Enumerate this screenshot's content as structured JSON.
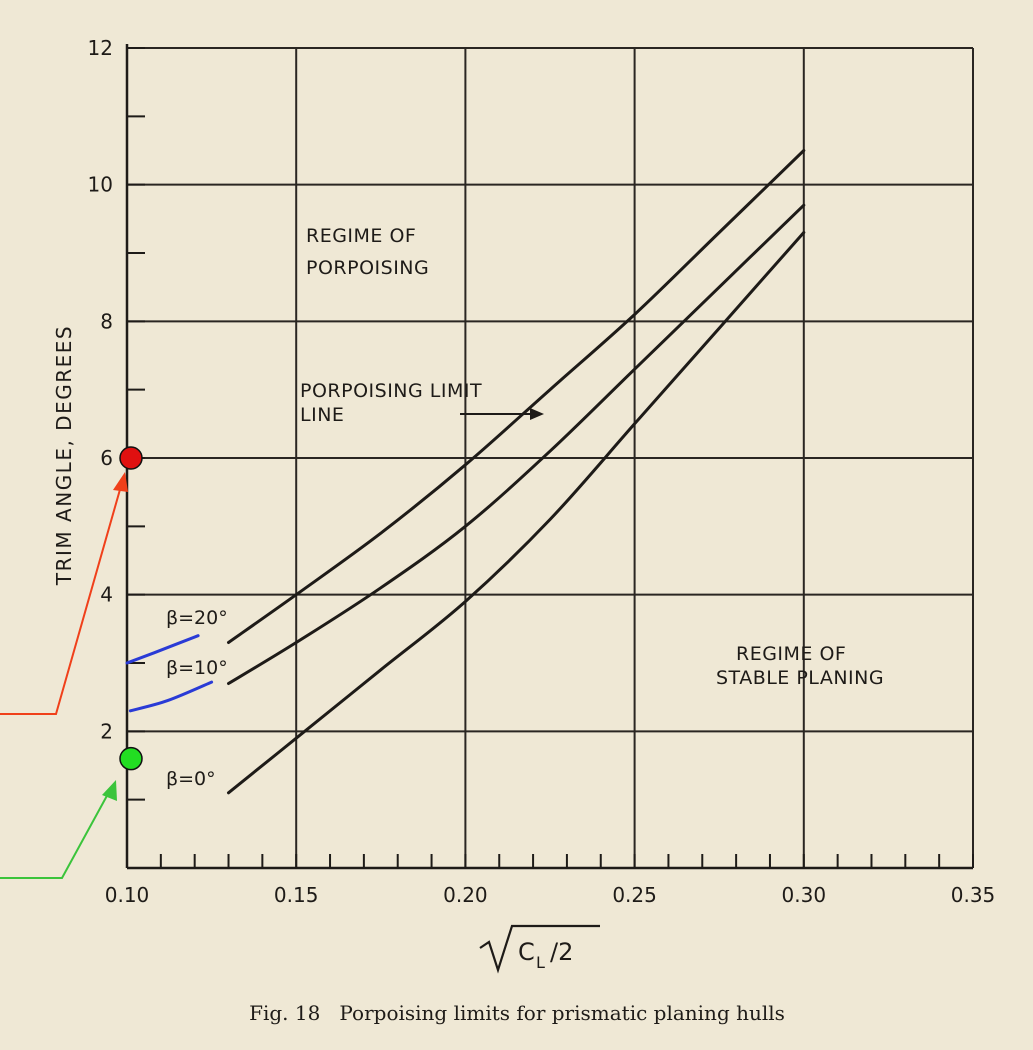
{
  "chart_data": {
    "type": "line",
    "title": "",
    "ylabel": "TRIM ANGLE, DEGREES",
    "xlabel": "√(CL/2)",
    "xlim": [
      0.1,
      0.35
    ],
    "ylim": [
      0,
      12
    ],
    "x_ticks": [
      "0.10",
      "0.15",
      "0.20",
      "0.25",
      "0.30",
      "0.35"
    ],
    "y_ticks": [
      "2",
      "4",
      "6",
      "8",
      "10",
      "12"
    ],
    "grid": true,
    "legend": "none",
    "series": [
      {
        "name": "β=20°",
        "color": "#1e1b18",
        "points": [
          [
            0.13,
            3.3
          ],
          [
            0.15,
            4.0
          ],
          [
            0.175,
            4.9
          ],
          [
            0.2,
            5.9
          ],
          [
            0.225,
            7.0
          ],
          [
            0.25,
            8.1
          ],
          [
            0.275,
            9.3
          ],
          [
            0.3,
            10.5
          ]
        ]
      },
      {
        "name": "β=10°",
        "color": "#1e1b18",
        "points": [
          [
            0.13,
            2.7
          ],
          [
            0.15,
            3.3
          ],
          [
            0.175,
            4.1
          ],
          [
            0.2,
            5.0
          ],
          [
            0.225,
            6.1
          ],
          [
            0.25,
            7.3
          ],
          [
            0.275,
            8.5
          ],
          [
            0.3,
            9.7
          ]
        ]
      },
      {
        "name": "β=0°",
        "color": "#1e1b18",
        "points": [
          [
            0.13,
            1.1
          ],
          [
            0.15,
            1.9
          ],
          [
            0.175,
            2.9
          ],
          [
            0.2,
            3.9
          ],
          [
            0.225,
            5.1
          ],
          [
            0.25,
            6.5
          ],
          [
            0.275,
            7.9
          ],
          [
            0.3,
            9.3
          ]
        ]
      }
    ],
    "blue_extensions": [
      {
        "color": "#2a3bd6",
        "points": [
          [
            0.1,
            3.0
          ],
          [
            0.108,
            3.15
          ],
          [
            0.121,
            3.4
          ]
        ]
      },
      {
        "color": "#2a3bd6",
        "points": [
          [
            0.101,
            2.3
          ],
          [
            0.112,
            2.45
          ],
          [
            0.125,
            2.72
          ]
        ]
      }
    ],
    "annotations": {
      "porpoising_regime": [
        "REGIME OF",
        "PORPOISING"
      ],
      "limit_line": [
        "PORPOISING LIMIT",
        "LINE"
      ],
      "stable_regime": [
        "REGIME OF",
        "STABLE PLANING"
      ]
    },
    "markers": [
      {
        "x": 0.1,
        "y": 6.0,
        "color": "#e01010"
      },
      {
        "x": 0.1,
        "y": 1.6,
        "color": "#22dd22"
      }
    ],
    "caption": "Fig. 18   Porpoising limits for prismatic planing hulls",
    "arrow_colors": {
      "red": "#f0401a",
      "green": "#3bc43b"
    }
  }
}
